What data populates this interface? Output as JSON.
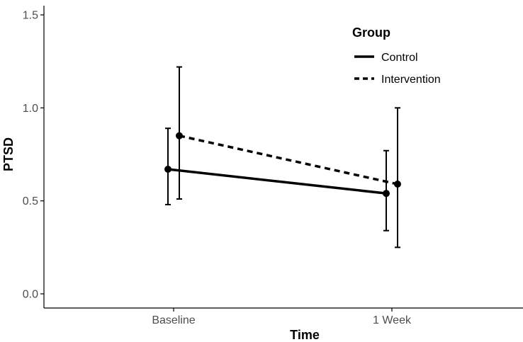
{
  "chart_data": {
    "type": "line",
    "title": "",
    "xlabel": "Time",
    "ylabel": "PTSD",
    "categories": [
      "Baseline",
      "1 Week"
    ],
    "ylim": [
      0,
      1.5
    ],
    "yticks": [
      "0.0",
      "0.5",
      "1.0",
      "1.5"
    ],
    "grid": false,
    "legend": {
      "title": "Group",
      "position": "top-right"
    },
    "series": [
      {
        "name": "Control",
        "line_style": "solid",
        "values": [
          0.67,
          0.54
        ],
        "lower": [
          0.48,
          0.34
        ],
        "upper": [
          0.89,
          0.77
        ]
      },
      {
        "name": "Intervention",
        "line_style": "dashed",
        "values": [
          0.85,
          0.59
        ],
        "lower": [
          0.51,
          0.25
        ],
        "upper": [
          1.22,
          1.0
        ]
      }
    ],
    "colors": {
      "line": "#000000",
      "axis": "#000000",
      "tick_text": "#4d4d4d"
    }
  }
}
